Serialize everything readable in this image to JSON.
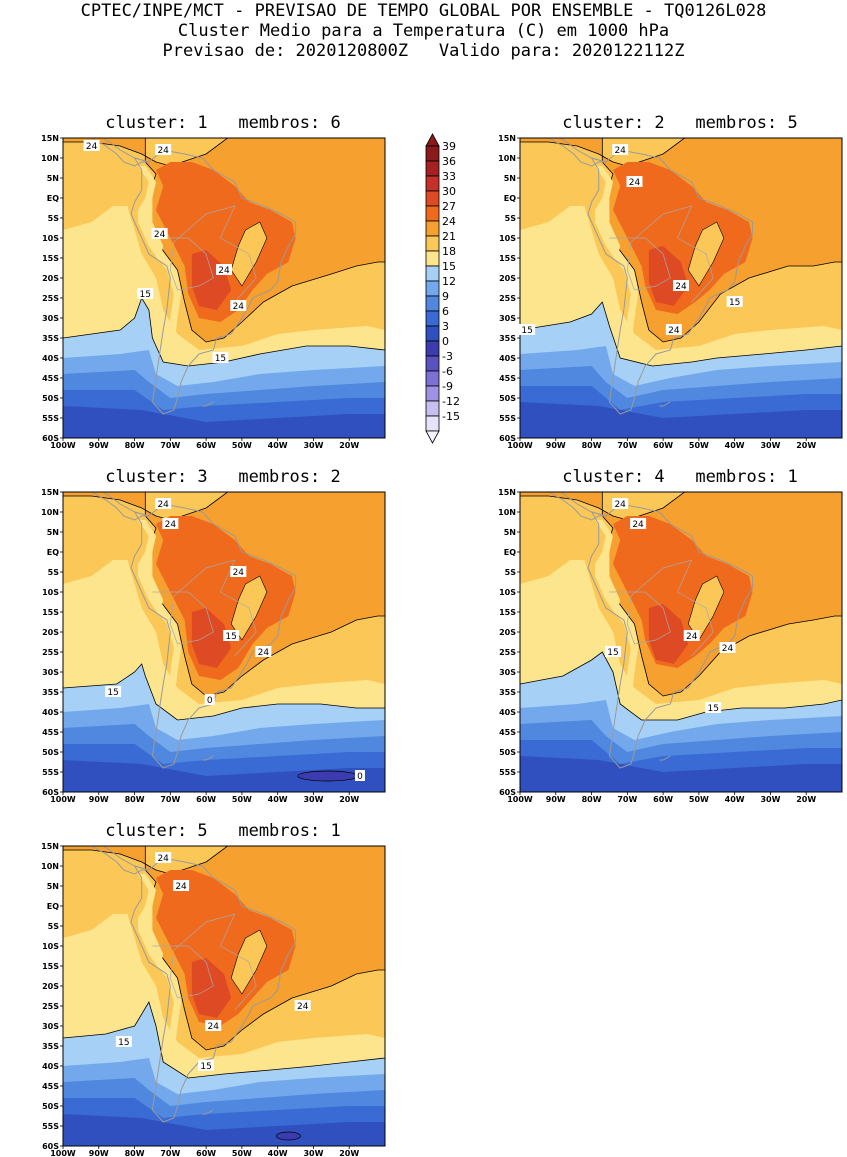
{
  "header": {
    "line1": "CPTEC/INPE/MCT - PREVISAO DE TEMPO GLOBAL POR ENSEMBLE - TQ0126L028",
    "line2": "Cluster Medio para a Temperatura (C) em 1000 hPa",
    "line3": "Previsao de: 2020120800Z   Valido para: 2020122112Z"
  },
  "axes": {
    "lat_labels": [
      "15N",
      "10N",
      "5N",
      "EQ",
      "5S",
      "10S",
      "15S",
      "20S",
      "25S",
      "30S",
      "35S",
      "40S",
      "45S",
      "50S",
      "55S",
      "60S"
    ],
    "lon_labels": [
      "100W",
      "90W",
      "80W",
      "70W",
      "60W",
      "50W",
      "40W",
      "30W",
      "20W"
    ]
  },
  "colorbar": {
    "labels": [
      "39",
      "36",
      "33",
      "30",
      "27",
      "24",
      "21",
      "18",
      "15",
      "12",
      "9",
      "6",
      "3",
      "0",
      "-3",
      "-6",
      "-9",
      "-12",
      "-15"
    ],
    "colors": [
      "#8b1a1a",
      "#a52020",
      "#c4302a",
      "#de4a24",
      "#f06a1e",
      "#f6a030",
      "#fbc858",
      "#fde58e",
      "#a6d0f5",
      "#73a9ec",
      "#4f88de",
      "#3a6ad4",
      "#3050c0",
      "#3c3cb0",
      "#5b52c2",
      "#7c70d4",
      "#9f92e2",
      "#c7bff0",
      "#e7e2fa"
    ]
  },
  "panels": [
    {
      "title": "cluster: 1   membros: 6",
      "labels": [
        "24",
        "24",
        "24",
        "24",
        "24",
        "15",
        "15"
      ]
    },
    {
      "title": "cluster: 2   membros: 5",
      "labels": [
        "24",
        "24",
        "24",
        "24",
        "15",
        "15"
      ]
    },
    {
      "title": "cluster: 3   membros: 2",
      "labels": [
        "24",
        "24",
        "24",
        "24",
        "15",
        "15",
        "0"
      ]
    },
    {
      "title": "cluster: 4   membros: 1",
      "labels": [
        "24",
        "24",
        "24",
        "24",
        "15",
        "15"
      ]
    },
    {
      "title": "cluster: 5   membros: 1",
      "labels": [
        "24",
        "24",
        "24",
        "24",
        "15",
        "15"
      ]
    }
  ]
}
